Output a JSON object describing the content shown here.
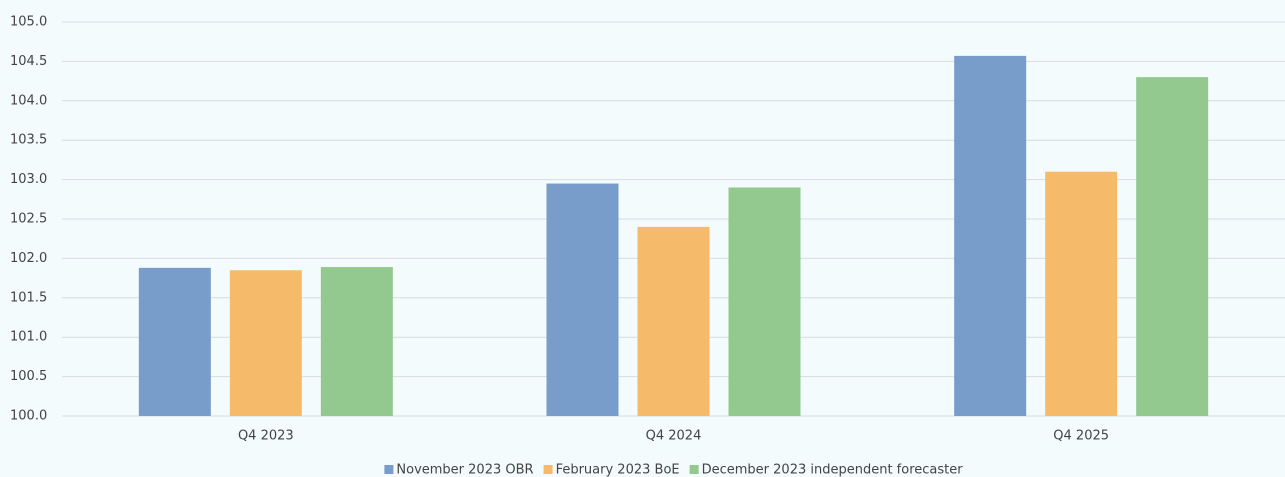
{
  "chart_data": {
    "type": "bar",
    "categories": [
      "Q4 2023",
      "Q4 2024",
      "Q4 2025"
    ],
    "series": [
      {
        "name": "November 2023 OBR",
        "color": "#789dca",
        "values": [
          101.88,
          102.95,
          104.57
        ]
      },
      {
        "name": "February 2023 BoE",
        "color": "#f6bb6a",
        "values": [
          101.85,
          102.4,
          103.1
        ]
      },
      {
        "name": "December 2023 independent forecaster",
        "color": "#93c98f",
        "values": [
          101.89,
          102.9,
          104.3
        ]
      }
    ],
    "ylim": [
      100,
      105
    ],
    "yticks": [
      {
        "value": 100,
        "label": "100.0"
      },
      100.5,
      {
        "value": 101,
        "label": "101.0"
      },
      101.5,
      {
        "value": 102,
        "label": "102.0"
      },
      102.5,
      {
        "value": 103,
        "label": "103.0"
      },
      103.5,
      {
        "value": 104,
        "label": "104.0"
      },
      104.5,
      {
        "value": 105,
        "label": "105.0"
      }
    ],
    "grid": true,
    "legend": "bottom"
  }
}
